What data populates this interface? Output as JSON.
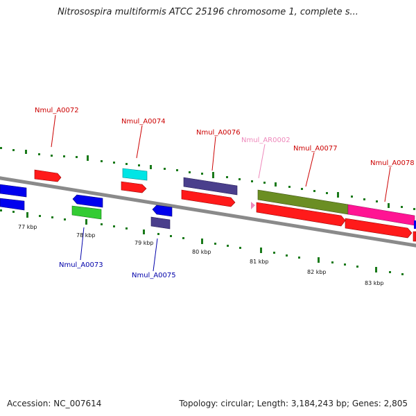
{
  "header": {
    "title": "Nitrosospira multiformis ATCC 25196 chromosome 1, complete s..."
  },
  "footer": {
    "accession": "Accession: NC_007614",
    "summary": "Topology: circular; Length: 3,184,243 bp; Genes: 2,805"
  },
  "map": {
    "tick_labels": [
      "77 kbp",
      "78 kbp",
      "79 kbp",
      "80 kbp",
      "81 kbp",
      "82 kbp",
      "83 kbp"
    ],
    "genes": [
      {
        "label": "Nmul_A0072",
        "color": "#cc0000"
      },
      {
        "label": "Nmul_A0073",
        "color": "#0000aa"
      },
      {
        "label": "Nmul_A0074",
        "color": "#cc0000"
      },
      {
        "label": "Nmul_A0075",
        "color": "#0000aa"
      },
      {
        "label": "Nmul_A0076",
        "color": "#cc0000"
      },
      {
        "label": "Nmul_AR0002",
        "color": "#ee88bb"
      },
      {
        "label": "Nmul_A0077",
        "color": "#cc0000"
      },
      {
        "label": "Nmul_A0078",
        "color": "#cc0000"
      }
    ],
    "colors": {
      "backbone": "#8a8a8a",
      "cds": "#ff1a1a",
      "reverse": "#0000ee",
      "trna": "#00e5e5",
      "gc_ticks": "#1a7a1a",
      "olive": "#6b8e23",
      "magenta": "#ff1493",
      "slate": "#4a3f8c",
      "green": "#33cc33",
      "rna": "#ee88bb"
    }
  }
}
